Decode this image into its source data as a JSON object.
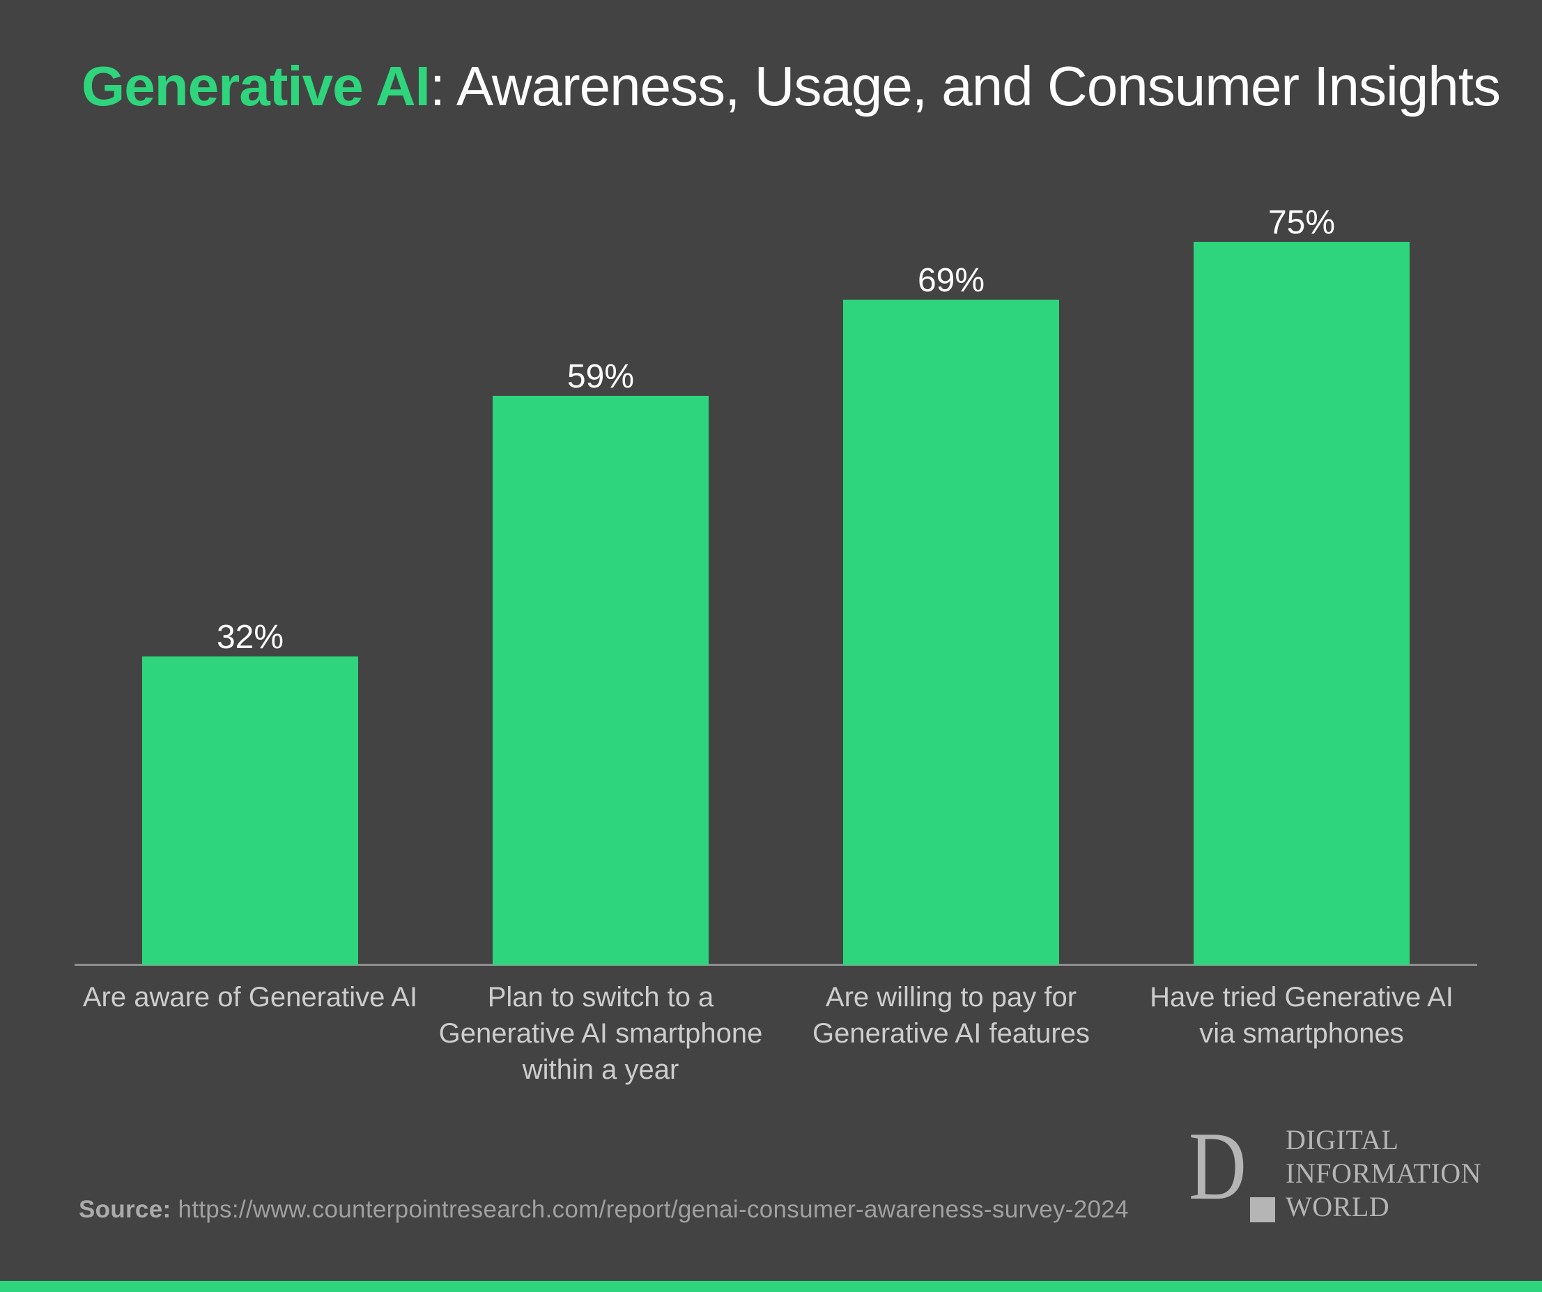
{
  "title": {
    "highlight": "Generative AI",
    "rest": ": Awareness, Usage, and Consumer Insights"
  },
  "colors": {
    "background": "#434343",
    "accent_green": "#2ed57c",
    "bar": "#2ed57c",
    "value_label": "#ffffff",
    "category_label": "#cdcdcd",
    "axis_line": "#8f8f8f",
    "source_text": "#a0a0a0",
    "logo_gray": "#b5b5b5"
  },
  "chart_data": {
    "type": "bar",
    "title": "Generative AI: Awareness, Usage, and Consumer Insights",
    "categories": [
      "Are aware of Generative AI",
      "Plan to switch to a\nGenerative AI smartphone\nwithin a year",
      "Are willing to pay for\nGenerative AI features",
      "Have tried Generative AI\nvia smartphones"
    ],
    "values": [
      32,
      59,
      69,
      75
    ],
    "value_labels": [
      "32%",
      "59%",
      "69%",
      "75%"
    ],
    "unit": "%",
    "xlabel": "",
    "ylabel": "",
    "ylim": [
      0,
      100
    ],
    "grid": false,
    "legend": "none",
    "bar_color": "#2ed57c"
  },
  "source": {
    "label": "Source:",
    "url": "https://www.counterpointresearch.com/report/genai-consumer-awareness-survey-2024"
  },
  "logo": {
    "monogram": "D",
    "lines": "DIGITAL\nINFORMATION\nWORLD"
  }
}
